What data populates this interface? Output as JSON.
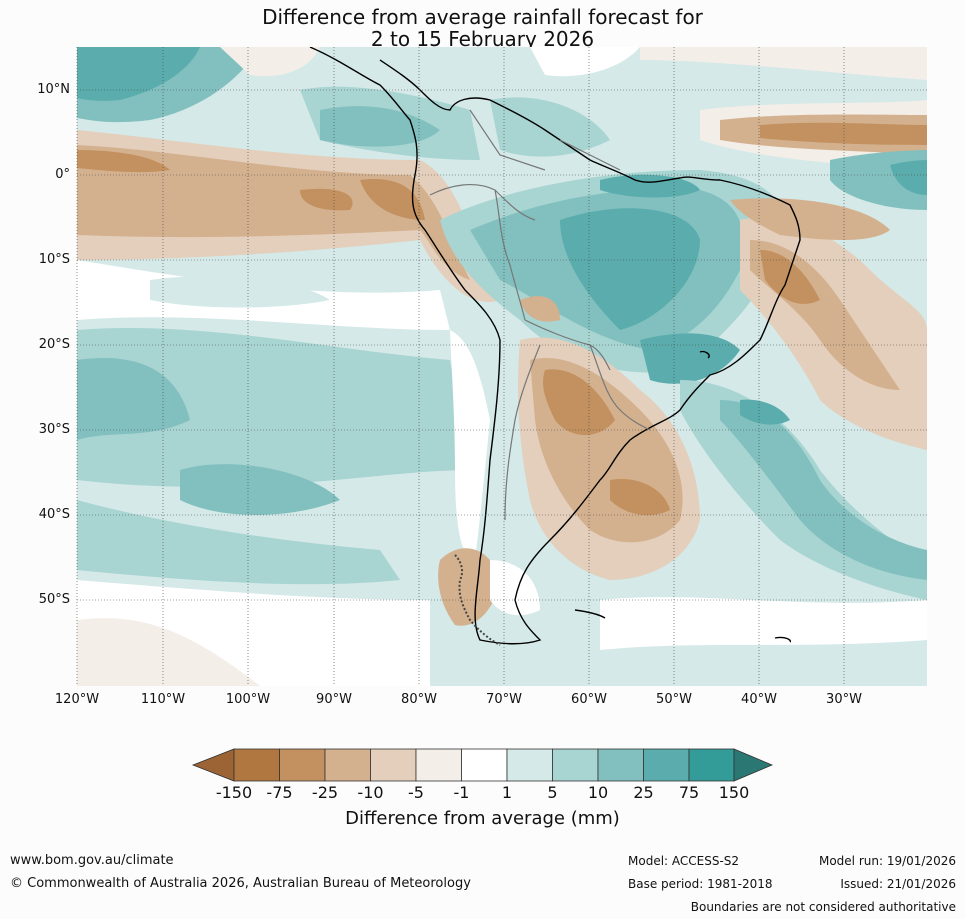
{
  "title": {
    "line1": "Difference from average rainfall forecast for",
    "line2": "2 to 15 February 2026"
  },
  "map": {
    "region": "South America",
    "lat_labels": [
      "10°N",
      "0°",
      "10°S",
      "20°S",
      "30°S",
      "40°S",
      "50°S"
    ],
    "lon_labels": [
      "120°W",
      "110°W",
      "100°W",
      "90°W",
      "80°W",
      "70°W",
      "60°W",
      "50°W",
      "40°W",
      "30°W"
    ]
  },
  "colorbar": {
    "labels": [
      "-150",
      "-75",
      "-25",
      "-10",
      "-5",
      "-1",
      "1",
      "5",
      "10",
      "25",
      "75",
      "150"
    ],
    "colors": [
      "#9c6334",
      "#b07840",
      "#c3915f",
      "#d4b18e",
      "#e3cfbc",
      "#f3eee8",
      "#ffffff",
      "#d4e9e8",
      "#a8d4d2",
      "#82c0bf",
      "#5aadac",
      "#339b98",
      "#2a7773"
    ],
    "title": "Difference from average (mm)"
  },
  "footer": {
    "website": "www.bom.gov.au/climate",
    "copyright": "© Commonwealth of Australia 2026, Australian Bureau of Meteorology",
    "model": "Model: ACCESS-S2",
    "base_period": "Base period: 1981-2018",
    "model_run": "Model run: 19/01/2026",
    "issued": "Issued: 21/01/2026",
    "disclaimer": "Boundaries are not considered authoritative"
  }
}
